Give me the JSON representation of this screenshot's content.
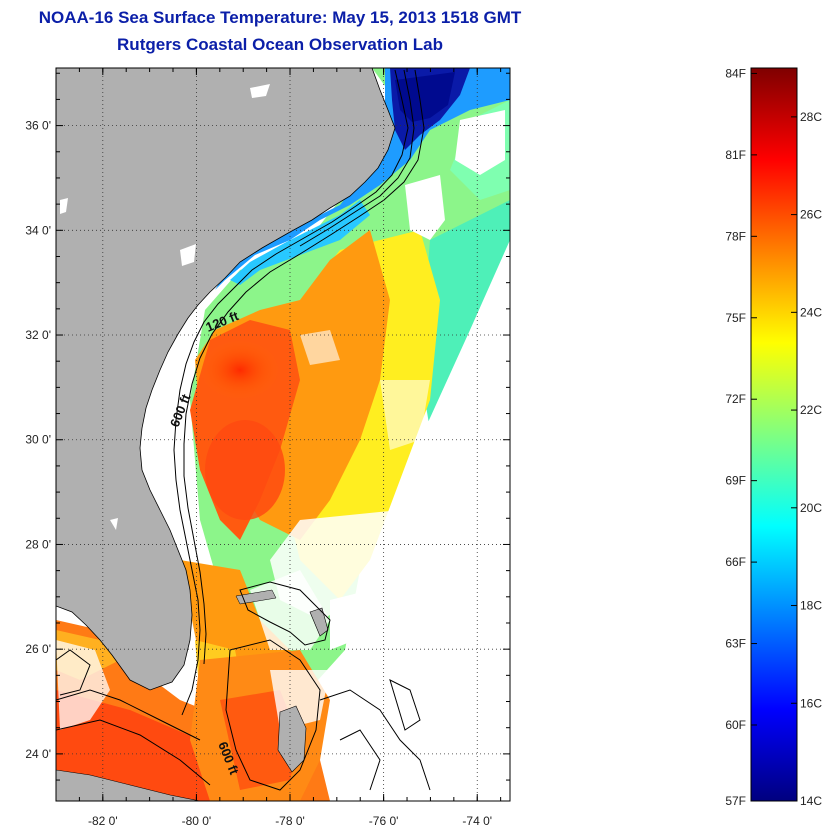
{
  "title": {
    "line1": "NOAA-16 Sea Surface Temperature:  May 15, 2013 1518 GMT",
    "line2": "Rutgers Coastal Ocean Observation Lab"
  },
  "map": {
    "lat_labels": [
      "36 0'",
      "34 0'",
      "32 0'",
      "30 0'",
      "28 0'",
      "26 0'",
      "24 0'"
    ],
    "lon_labels": [
      "-82 0'",
      "-80 0'",
      "-78 0'",
      "-76 0'",
      "-74 0'"
    ],
    "lat_values": [
      36,
      34,
      32,
      30,
      28,
      26,
      24
    ],
    "lon_values": [
      -82,
      -80,
      -78,
      -76,
      -74
    ],
    "lat_range": [
      23.1,
      37.1
    ],
    "lon_range": [
      -83,
      -73.3
    ],
    "isobath_labels": [
      "120 ft",
      "600 ft",
      "600 ft"
    ],
    "land_color": "#b0b0b0",
    "cloud_color": "#ffffff"
  },
  "colorbar": {
    "fahrenheit_labels": [
      "84F",
      "81F",
      "78F",
      "75F",
      "72F",
      "69F",
      "66F",
      "63F",
      "60F",
      "57F"
    ],
    "fahrenheit_values": [
      84,
      81,
      78,
      75,
      72,
      69,
      66,
      63,
      60,
      57
    ],
    "celsius_labels": [
      "28C",
      "26C",
      "24C",
      "22C",
      "20C",
      "18C",
      "16C",
      "14C"
    ],
    "celsius_values": [
      28,
      26,
      24,
      22,
      20,
      18,
      16,
      14
    ],
    "range_celsius": [
      14,
      29
    ],
    "colors": [
      "#00007f",
      "#0000ff",
      "#0080ff",
      "#00ffff",
      "#80ff80",
      "#ffff00",
      "#ff8000",
      "#ff0000",
      "#7f0000"
    ]
  }
}
